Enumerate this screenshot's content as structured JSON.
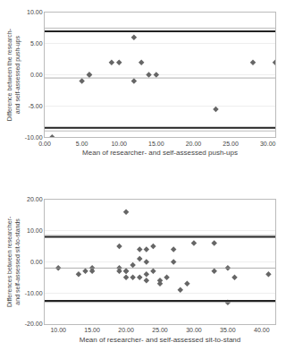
{
  "chart_data": [
    {
      "type": "scatter",
      "x": [
        1,
        5,
        6,
        6,
        9,
        10,
        12,
        12,
        13,
        14,
        15,
        23,
        28,
        31
      ],
      "values": [
        -10,
        -1,
        0,
        0,
        2,
        2,
        6,
        -1,
        2,
        0,
        0,
        -5.5,
        2,
        2
      ],
      "color": "#666666",
      "marker": "diamond",
      "lines": [
        {
          "value": -0.5,
          "color": "#999999",
          "line_style": "solid"
        },
        {
          "value": 7.0,
          "color": "#222222",
          "line_style": "bold"
        },
        {
          "value": -8.5,
          "color": "#222222",
          "line_style": "bold"
        },
        {
          "value": 7.5,
          "color": "#aaaaaa",
          "line_style": "solid"
        },
        {
          "value": -9.0,
          "color": "#aaaaaa",
          "line_style": "solid"
        }
      ],
      "xlim": [
        0,
        31
      ],
      "ylim": [
        -10,
        10
      ],
      "xticks": [
        {
          "value": 0,
          "label": "0.00"
        },
        {
          "value": 5,
          "label": "5.00"
        },
        {
          "value": 10,
          "label": "10.00"
        },
        {
          "value": 15,
          "label": "15.00"
        },
        {
          "value": 20,
          "label": "20.00"
        },
        {
          "value": 25,
          "label": "25.00"
        },
        {
          "value": 30,
          "label": "30.00"
        }
      ],
      "yticks": [
        {
          "value": -10,
          "label": "-10.00"
        },
        {
          "value": -5,
          "label": "-5.00"
        },
        {
          "value": 0,
          "label": "0.00"
        },
        {
          "value": 5,
          "label": "5.00"
        },
        {
          "value": 10,
          "label": "10.00"
        }
      ],
      "grid": true,
      "xlabel": "Mean of researcher- and self-assessed push-ups",
      "ylabel": "Difference between the research- and self-assessed push-ups"
    },
    {
      "type": "scatter",
      "x": [
        10,
        13,
        14,
        15,
        15,
        19,
        19,
        19,
        20,
        20,
        20,
        20,
        21,
        21,
        22,
        22,
        22,
        23,
        23,
        23,
        23,
        24,
        24,
        25,
        25,
        26,
        27,
        27,
        28,
        29,
        30,
        33,
        33,
        35,
        35,
        36,
        41
      ],
      "values": [
        -2,
        -4,
        -3,
        -2,
        -3,
        5,
        -3,
        -2,
        16,
        -3,
        -3,
        -5,
        -1,
        -5,
        4,
        1,
        -5,
        4,
        -6,
        0,
        -4,
        5,
        -3,
        -6,
        -7,
        -5,
        4,
        0,
        -9,
        -7,
        6,
        6,
        -3,
        -13,
        -2,
        -5,
        -4
      ],
      "color": "#666666",
      "marker": "diamond",
      "lines": [
        {
          "value": -2.0,
          "color": "#999999",
          "line_style": "solid"
        },
        {
          "value": 8.0,
          "color": "#222222",
          "line_style": "bold"
        },
        {
          "value": -12.5,
          "color": "#222222",
          "line_style": "bold"
        },
        {
          "value": 8.5,
          "color": "#aaaaaa",
          "line_style": "solid"
        },
        {
          "value": -13.0,
          "color": "#aaaaaa",
          "line_style": "solid"
        }
      ],
      "xlim": [
        8,
        42
      ],
      "ylim": [
        -20,
        20
      ],
      "xticks": [
        {
          "value": 10,
          "label": "10.00"
        },
        {
          "value": 15,
          "label": "15.00"
        },
        {
          "value": 20,
          "label": "20.00"
        },
        {
          "value": 25,
          "label": "25.00"
        },
        {
          "value": 30,
          "label": "30.00"
        },
        {
          "value": 35,
          "label": "35.00"
        },
        {
          "value": 40,
          "label": "40.00"
        }
      ],
      "yticks": [
        {
          "value": -20,
          "label": "-20.00"
        },
        {
          "value": -10,
          "label": "-10.00"
        },
        {
          "value": 0,
          "label": "0.00"
        },
        {
          "value": 10,
          "label": "10.00"
        },
        {
          "value": 20,
          "label": "20.00"
        }
      ],
      "grid": true,
      "xlabel": "Mean of researcher- and self-assessed sit-to-stand",
      "ylabel": "Differences between researcher- and self-assessed sit-to-stands"
    }
  ]
}
